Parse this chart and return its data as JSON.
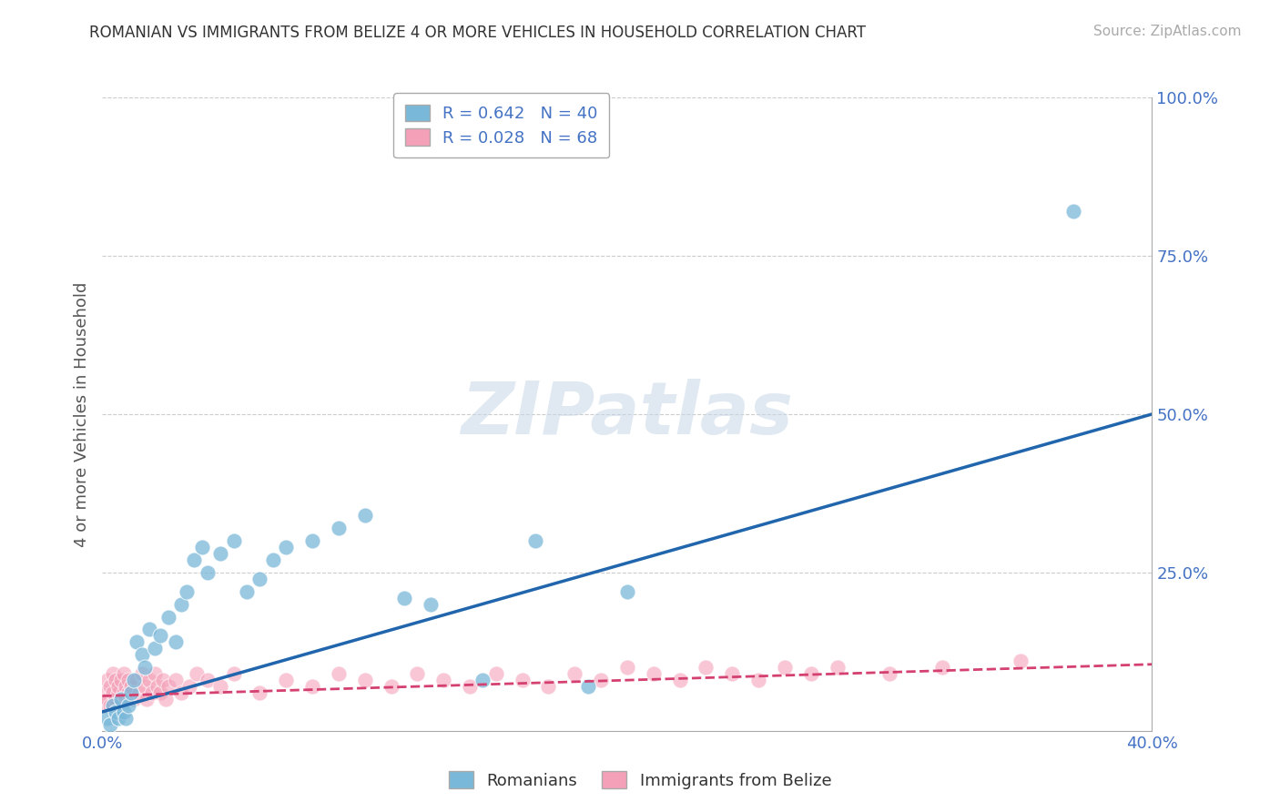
{
  "title": "ROMANIAN VS IMMIGRANTS FROM BELIZE 4 OR MORE VEHICLES IN HOUSEHOLD CORRELATION CHART",
  "source": "Source: ZipAtlas.com",
  "ylabel": "4 or more Vehicles in Household",
  "xlim": [
    0.0,
    0.4
  ],
  "ylim": [
    0.0,
    1.0
  ],
  "xticks": [
    0.0,
    0.05,
    0.1,
    0.15,
    0.2,
    0.25,
    0.3,
    0.35,
    0.4
  ],
  "xticklabels": [
    "0.0%",
    "",
    "",
    "",
    "",
    "",
    "",
    "",
    "40.0%"
  ],
  "yticks": [
    0.0,
    0.25,
    0.5,
    0.75,
    1.0
  ],
  "yticklabels": [
    "",
    "25.0%",
    "50.0%",
    "75.0%",
    "100.0%"
  ],
  "romanian_R": 0.642,
  "romanian_N": 40,
  "belize_R": 0.028,
  "belize_N": 68,
  "romanian_color": "#7ab8d9",
  "belize_color": "#f4a0b8",
  "romanian_line_color": "#2166ac",
  "belize_line_color": "#d44070",
  "watermark_text": "ZIPatlas",
  "background_color": "#ffffff",
  "grid_color": "#cccccc",
  "romanian_x": [
    0.002,
    0.003,
    0.004,
    0.005,
    0.006,
    0.007,
    0.008,
    0.009,
    0.01,
    0.011,
    0.012,
    0.013,
    0.015,
    0.016,
    0.018,
    0.02,
    0.022,
    0.025,
    0.028,
    0.03,
    0.032,
    0.035,
    0.038,
    0.04,
    0.045,
    0.05,
    0.055,
    0.06,
    0.065,
    0.07,
    0.08,
    0.09,
    0.1,
    0.115,
    0.125,
    0.145,
    0.165,
    0.185,
    0.2,
    0.37
  ],
  "romanian_y": [
    0.02,
    0.01,
    0.04,
    0.03,
    0.02,
    0.05,
    0.03,
    0.02,
    0.04,
    0.06,
    0.08,
    0.14,
    0.12,
    0.1,
    0.16,
    0.13,
    0.15,
    0.18,
    0.14,
    0.2,
    0.22,
    0.27,
    0.29,
    0.25,
    0.28,
    0.3,
    0.22,
    0.24,
    0.27,
    0.29,
    0.3,
    0.32,
    0.34,
    0.21,
    0.2,
    0.08,
    0.3,
    0.07,
    0.22,
    0.82
  ],
  "belize_x": [
    0.001,
    0.001,
    0.002,
    0.002,
    0.003,
    0.003,
    0.004,
    0.004,
    0.005,
    0.005,
    0.006,
    0.006,
    0.007,
    0.007,
    0.008,
    0.008,
    0.009,
    0.009,
    0.01,
    0.01,
    0.011,
    0.012,
    0.013,
    0.014,
    0.015,
    0.016,
    0.017,
    0.018,
    0.019,
    0.02,
    0.021,
    0.022,
    0.023,
    0.024,
    0.025,
    0.028,
    0.03,
    0.033,
    0.036,
    0.04,
    0.045,
    0.05,
    0.06,
    0.07,
    0.08,
    0.09,
    0.1,
    0.11,
    0.12,
    0.13,
    0.14,
    0.15,
    0.16,
    0.17,
    0.18,
    0.19,
    0.2,
    0.21,
    0.22,
    0.23,
    0.24,
    0.25,
    0.26,
    0.27,
    0.28,
    0.3,
    0.32,
    0.35
  ],
  "belize_y": [
    0.04,
    0.06,
    0.05,
    0.08,
    0.04,
    0.07,
    0.06,
    0.09,
    0.05,
    0.08,
    0.06,
    0.07,
    0.05,
    0.08,
    0.06,
    0.09,
    0.05,
    0.07,
    0.06,
    0.08,
    0.07,
    0.05,
    0.08,
    0.06,
    0.09,
    0.07,
    0.05,
    0.08,
    0.06,
    0.09,
    0.07,
    0.06,
    0.08,
    0.05,
    0.07,
    0.08,
    0.06,
    0.07,
    0.09,
    0.08,
    0.07,
    0.09,
    0.06,
    0.08,
    0.07,
    0.09,
    0.08,
    0.07,
    0.09,
    0.08,
    0.07,
    0.09,
    0.08,
    0.07,
    0.09,
    0.08,
    0.1,
    0.09,
    0.08,
    0.1,
    0.09,
    0.08,
    0.1,
    0.09,
    0.1,
    0.09,
    0.1,
    0.11
  ],
  "romanian_line_x": [
    0.0,
    0.4
  ],
  "romanian_line_y": [
    0.03,
    0.5
  ],
  "belize_line_x": [
    0.0,
    0.4
  ],
  "belize_line_y": [
    0.055,
    0.105
  ]
}
